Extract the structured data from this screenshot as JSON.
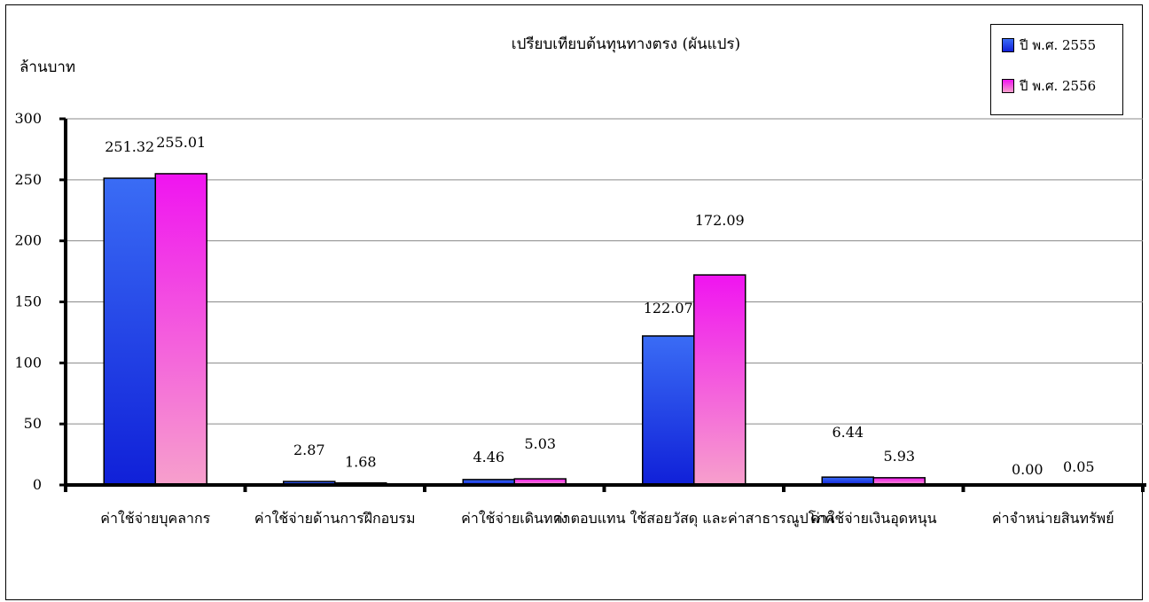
{
  "chart_data": {
    "type": "bar",
    "title": "เปรียบเทียบต้นทุนทางตรง (ผันแปร)",
    "ylabel": "ล้านบาท",
    "ylim": [
      0,
      300
    ],
    "yticks": [
      0,
      50,
      100,
      150,
      200,
      250,
      300
    ],
    "grid": true,
    "legend_position": "top-right",
    "categories": [
      "ค่าใช้จ่ายบุคลากร",
      "ค่าใช้จ่ายด้านการฝึกอบรม",
      "ค่าใช้จ่ายเดินทาง",
      "ค่าตอบแทน ใช้สอยวัสดุ และค่าสาธารณูปโภค",
      "ค่าใช้จ่ายเงินอุดหนุน",
      "ค่าจำหน่ายสินทรัพย์"
    ],
    "series": [
      {
        "name": "ปี พ.ศ. 2555",
        "color_top": "#3a6cf5",
        "color_bottom": "#1020d8",
        "values": [
          251.32,
          2.87,
          4.46,
          122.07,
          6.44,
          0.0
        ],
        "labels": [
          "251.32",
          "2.87",
          "4.46",
          "122.07",
          "6.44",
          "0.00"
        ]
      },
      {
        "name": "ปี พ.ศ. 2556",
        "color_top": "#f014f0",
        "color_bottom": "#f7a0cc",
        "values": [
          255.01,
          1.68,
          5.03,
          172.09,
          5.93,
          0.05
        ],
        "labels": [
          "255.01",
          "1.68",
          "5.03",
          "172.09",
          "5.93",
          "0.05"
        ]
      }
    ]
  }
}
